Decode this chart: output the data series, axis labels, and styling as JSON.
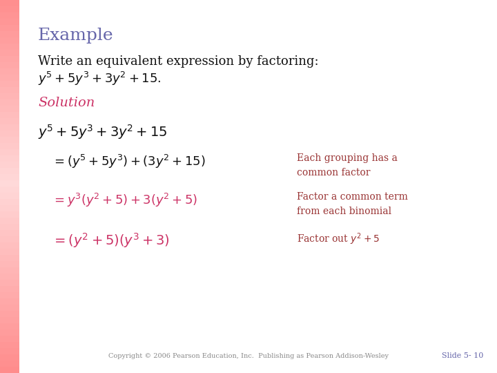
{
  "background_color": "#ffffff",
  "title": "Example",
  "title_color": "#6666aa",
  "title_fontsize": 18,
  "problem_line1": "Write an equivalent expression by factoring:",
  "problem_line2": "$y^5 + 5y^3 + 3y^2 + 15.$",
  "problem_color": "#111111",
  "problem_fontsize": 13,
  "solution_label": "Solution",
  "solution_color": "#cc3366",
  "solution_fontsize": 14,
  "step0": "$y^5 + 5y^3 + 3y^2 + 15$",
  "step0_color": "#111111",
  "step0_fontsize": 14,
  "step1_lhs": "$= (y^5 + 5y^3) + (3y^2 + 15)$",
  "step1_lhs_color": "#111111",
  "step1_rhs": "Each grouping has a\ncommon factor",
  "step1_rhs_color": "#993333",
  "step1_fontsize": 13,
  "step1_rhs_fontsize": 10,
  "step2_lhs": "$= y^3(y^2 + 5) + 3(y^2 + 5)$",
  "step2_lhs_color": "#cc3366",
  "step2_rhs": "Factor a common term\nfrom each binomial",
  "step2_rhs_color": "#993333",
  "step2_fontsize": 13,
  "step2_rhs_fontsize": 10,
  "step3_lhs": "$= (y^2 + 5)(y^3 + 3)$",
  "step3_lhs_color": "#cc3366",
  "step3_rhs": "Factor out $y^2 + 5$",
  "step3_rhs_color": "#993333",
  "step3_fontsize": 14,
  "step3_rhs_fontsize": 10,
  "copyright": "Copyright © 2006 Pearson Education, Inc.  Publishing as Pearson Addison-Wesley",
  "slide_number": "Slide 5- 10",
  "footer_color": "#888888",
  "slide_color": "#6666aa",
  "footer_fontsize": 7
}
